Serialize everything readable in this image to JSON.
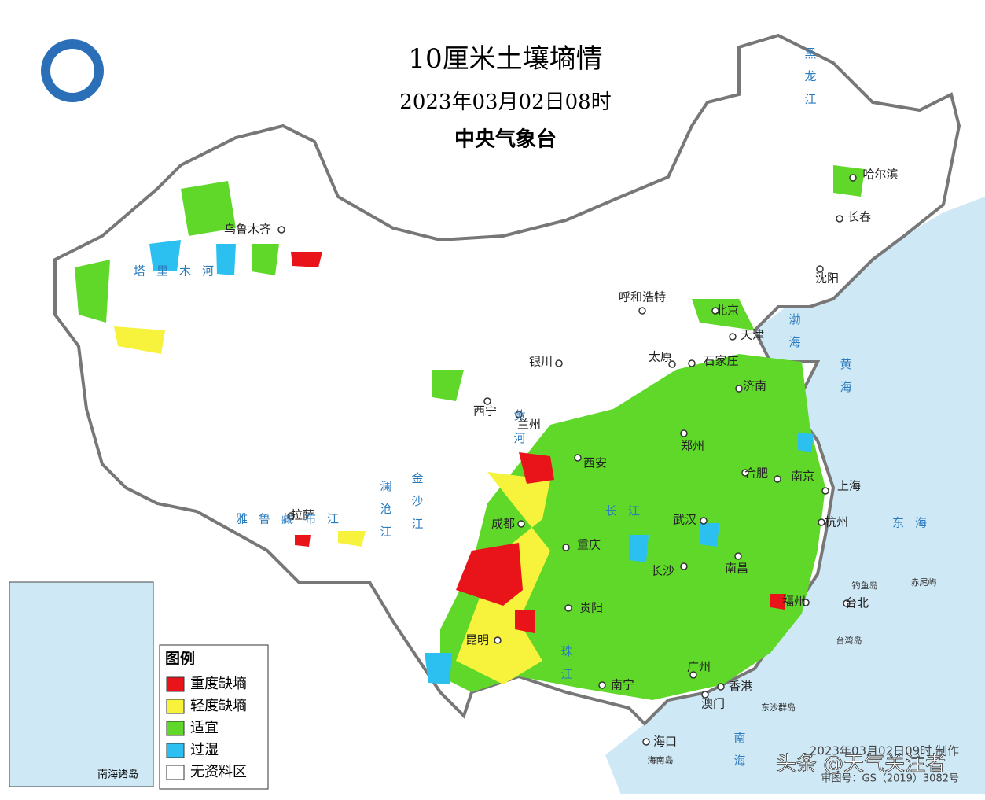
{
  "header": {
    "title": "10厘米土壤墒情",
    "date": "2023年03月02日08时",
    "agency": "中央气象台"
  },
  "legend": {
    "title": "图例",
    "items": [
      {
        "label": "重度缺墒",
        "color": "#e8141a"
      },
      {
        "label": "轻度缺墒",
        "color": "#f7f23c"
      },
      {
        "label": "适宜",
        "color": "#5fd829"
      },
      {
        "label": "过湿",
        "color": "#2cc0f0"
      },
      {
        "label": "无资料区",
        "color": "#ffffff"
      }
    ]
  },
  "cities": [
    "乌鲁木齐",
    "哈尔滨",
    "长春",
    "沈阳",
    "呼和浩特",
    "北京",
    "天津",
    "银川",
    "太原",
    "石家庄",
    "济南",
    "西宁",
    "兰州",
    "郑州",
    "西安",
    "合肥",
    "南京",
    "上海",
    "拉萨",
    "成都",
    "武汉",
    "杭州",
    "重庆",
    "长沙",
    "南昌",
    "贵阳",
    "福州",
    "台北",
    "昆明",
    "南宁",
    "广州",
    "香港",
    "澳门",
    "海口"
  ],
  "islands": [
    "钓鱼岛",
    "赤尾屿",
    "台湾岛",
    "东沙群岛",
    "海南岛"
  ],
  "waters": [
    "黑龙江",
    "渤海",
    "黄海",
    "东海",
    "南海",
    "雅鲁藏布江",
    "长江",
    "黄河",
    "澜沧江",
    "金沙江",
    "珠江",
    "塔里木河"
  ],
  "footer": {
    "made": "2023年03月02日09时 制作",
    "approval": "审图号：GS（2019）3082号",
    "watermark": "头条 @天气关注者",
    "inset": "南海诸岛"
  }
}
